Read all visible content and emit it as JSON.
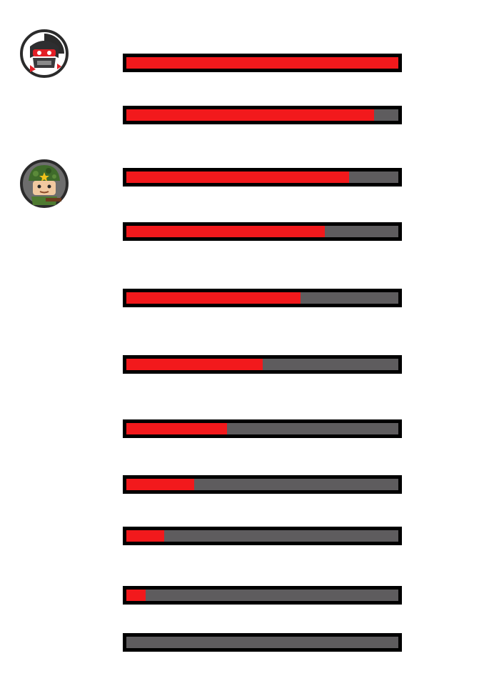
{
  "colors": {
    "bar_fill": "#f2191c",
    "bar_track": "#5e5c5e",
    "bar_border": "#000000",
    "background": "#ffffff"
  },
  "avatars": [
    {
      "icon": "ninja-avatar-icon"
    },
    {
      "icon": "soldier-avatar-icon"
    }
  ],
  "health_bars": [
    {
      "level": 1.0
    },
    {
      "level": 0.91
    },
    {
      "level": 0.82
    },
    {
      "level": 0.73
    },
    {
      "level": 0.64
    },
    {
      "level": 0.5
    },
    {
      "level": 0.37
    },
    {
      "level": 0.25
    },
    {
      "level": 0.14
    },
    {
      "level": 0.07
    },
    {
      "level": 0.0
    }
  ]
}
